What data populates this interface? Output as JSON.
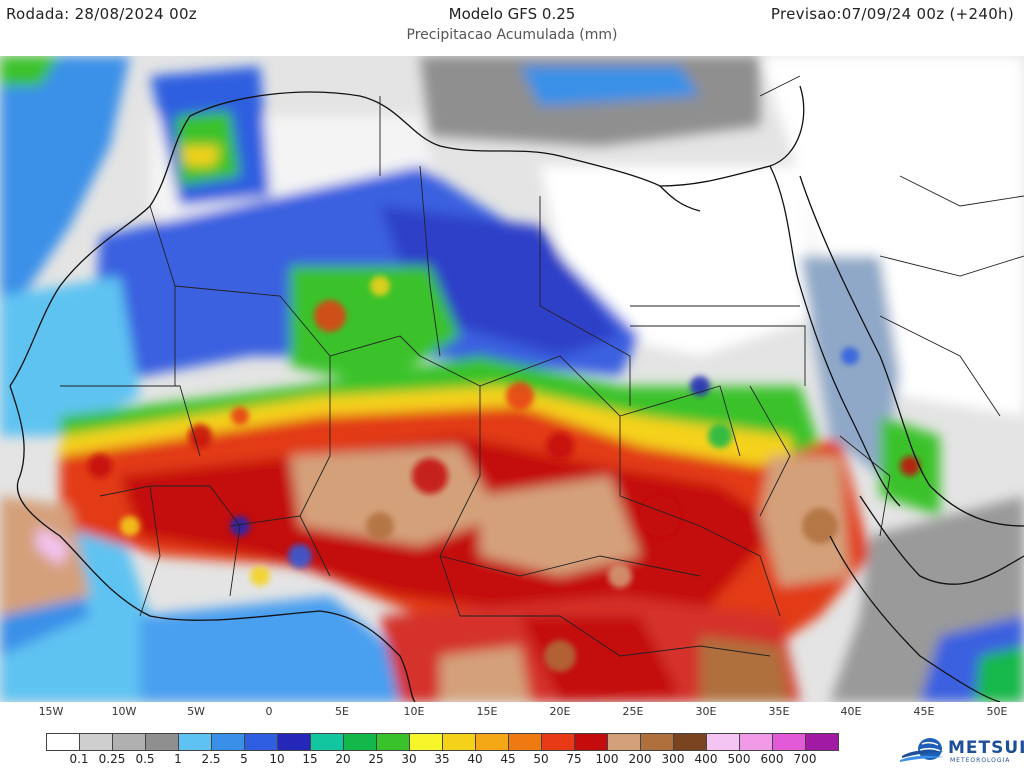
{
  "header": {
    "left": "Rodada: 28/08/2024 00z",
    "title": "Modelo GFS 0.25",
    "subtitle": "Precipitacao Acumulada (mm)",
    "right": "Previsao:07/09/24 00z (+240h)"
  },
  "longitudes": [
    "15W",
    "10W",
    "5W",
    "0",
    "5E",
    "10E",
    "15E",
    "20E",
    "25E",
    "30E",
    "35E",
    "40E",
    "45E",
    "50E"
  ],
  "legend": {
    "colors": [
      "#ffffff",
      "#cfcfcf",
      "#b0b0b0",
      "#8f8f8f",
      "#5ec3f2",
      "#3a90e8",
      "#2f5fe0",
      "#2427b8",
      "#12c7a0",
      "#14b84a",
      "#3ac22a",
      "#f5f52a",
      "#f4d21a",
      "#f5a815",
      "#ef7a12",
      "#e83a14",
      "#c40c0c",
      "#d4a07a",
      "#b0703e",
      "#7a4420",
      "#f4c4f2",
      "#f09ae8",
      "#e35ad8",
      "#a01aa4"
    ],
    "labels": [
      "0.1",
      "0.25",
      "0.5",
      "1",
      "2.5",
      "5",
      "10",
      "15",
      "20",
      "25",
      "30",
      "35",
      "40",
      "45",
      "50",
      "75",
      "100",
      "200",
      "300",
      "400",
      "500",
      "600",
      "700"
    ]
  },
  "logo": {
    "name": "METSUL",
    "tagline": "METEOROLOGIA"
  }
}
